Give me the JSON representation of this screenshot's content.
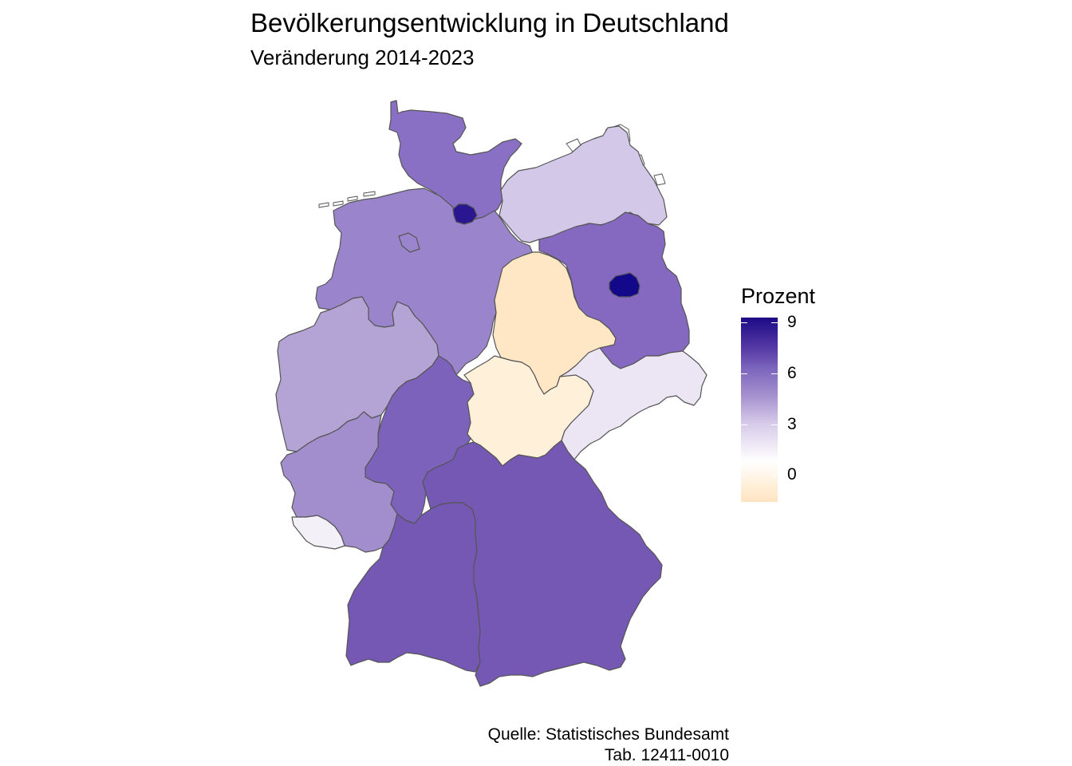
{
  "title": "Bevölkerungsentwicklung in Deutschland",
  "subtitle": "Veränderung 2014-2023",
  "caption": [
    "Quelle: Statistisches Bundesamt",
    "Tab. 12411-0010"
  ],
  "legend": {
    "title": "Prozent",
    "ticks": [
      "9",
      "6",
      "3",
      "0"
    ],
    "tick_values": [
      9,
      6,
      3,
      0
    ],
    "range": [
      -1.6,
      9.3
    ],
    "colors": {
      "low": "#ffe4c0",
      "mid": "#ffffff",
      "high": "#1c0a86"
    }
  },
  "colors": {
    "border": "#555555"
  },
  "regions": [
    {
      "name": "Schleswig-Holstein",
      "color": "#8a70c4"
    },
    {
      "name": "Hamburg",
      "color": "#2a1690"
    },
    {
      "name": "Mecklenburg-Vorpommern",
      "color": "#d4c8e9"
    },
    {
      "name": "Niedersachsen",
      "color": "#9a84cb"
    },
    {
      "name": "Bremen",
      "color": "#9a84cb"
    },
    {
      "name": "Brandenburg",
      "color": "#8569c0"
    },
    {
      "name": "Berlin",
      "color": "#13078a"
    },
    {
      "name": "Sachsen-Anhalt",
      "color": "#ffe6c4"
    },
    {
      "name": "Nordrhein-Westfalen",
      "color": "#b4a4d6"
    },
    {
      "name": "Hessen",
      "color": "#7c62ba"
    },
    {
      "name": "Thüringen",
      "color": "#fff0da"
    },
    {
      "name": "Sachsen",
      "color": "#ece6f4"
    },
    {
      "name": "Rheinland-Pfalz",
      "color": "#a28dcd"
    },
    {
      "name": "Saarland",
      "color": "#f3f0f8"
    },
    {
      "name": "Baden-Württemberg",
      "color": "#7558b4"
    },
    {
      "name": "Bayern",
      "color": "#7558b4"
    }
  ]
}
